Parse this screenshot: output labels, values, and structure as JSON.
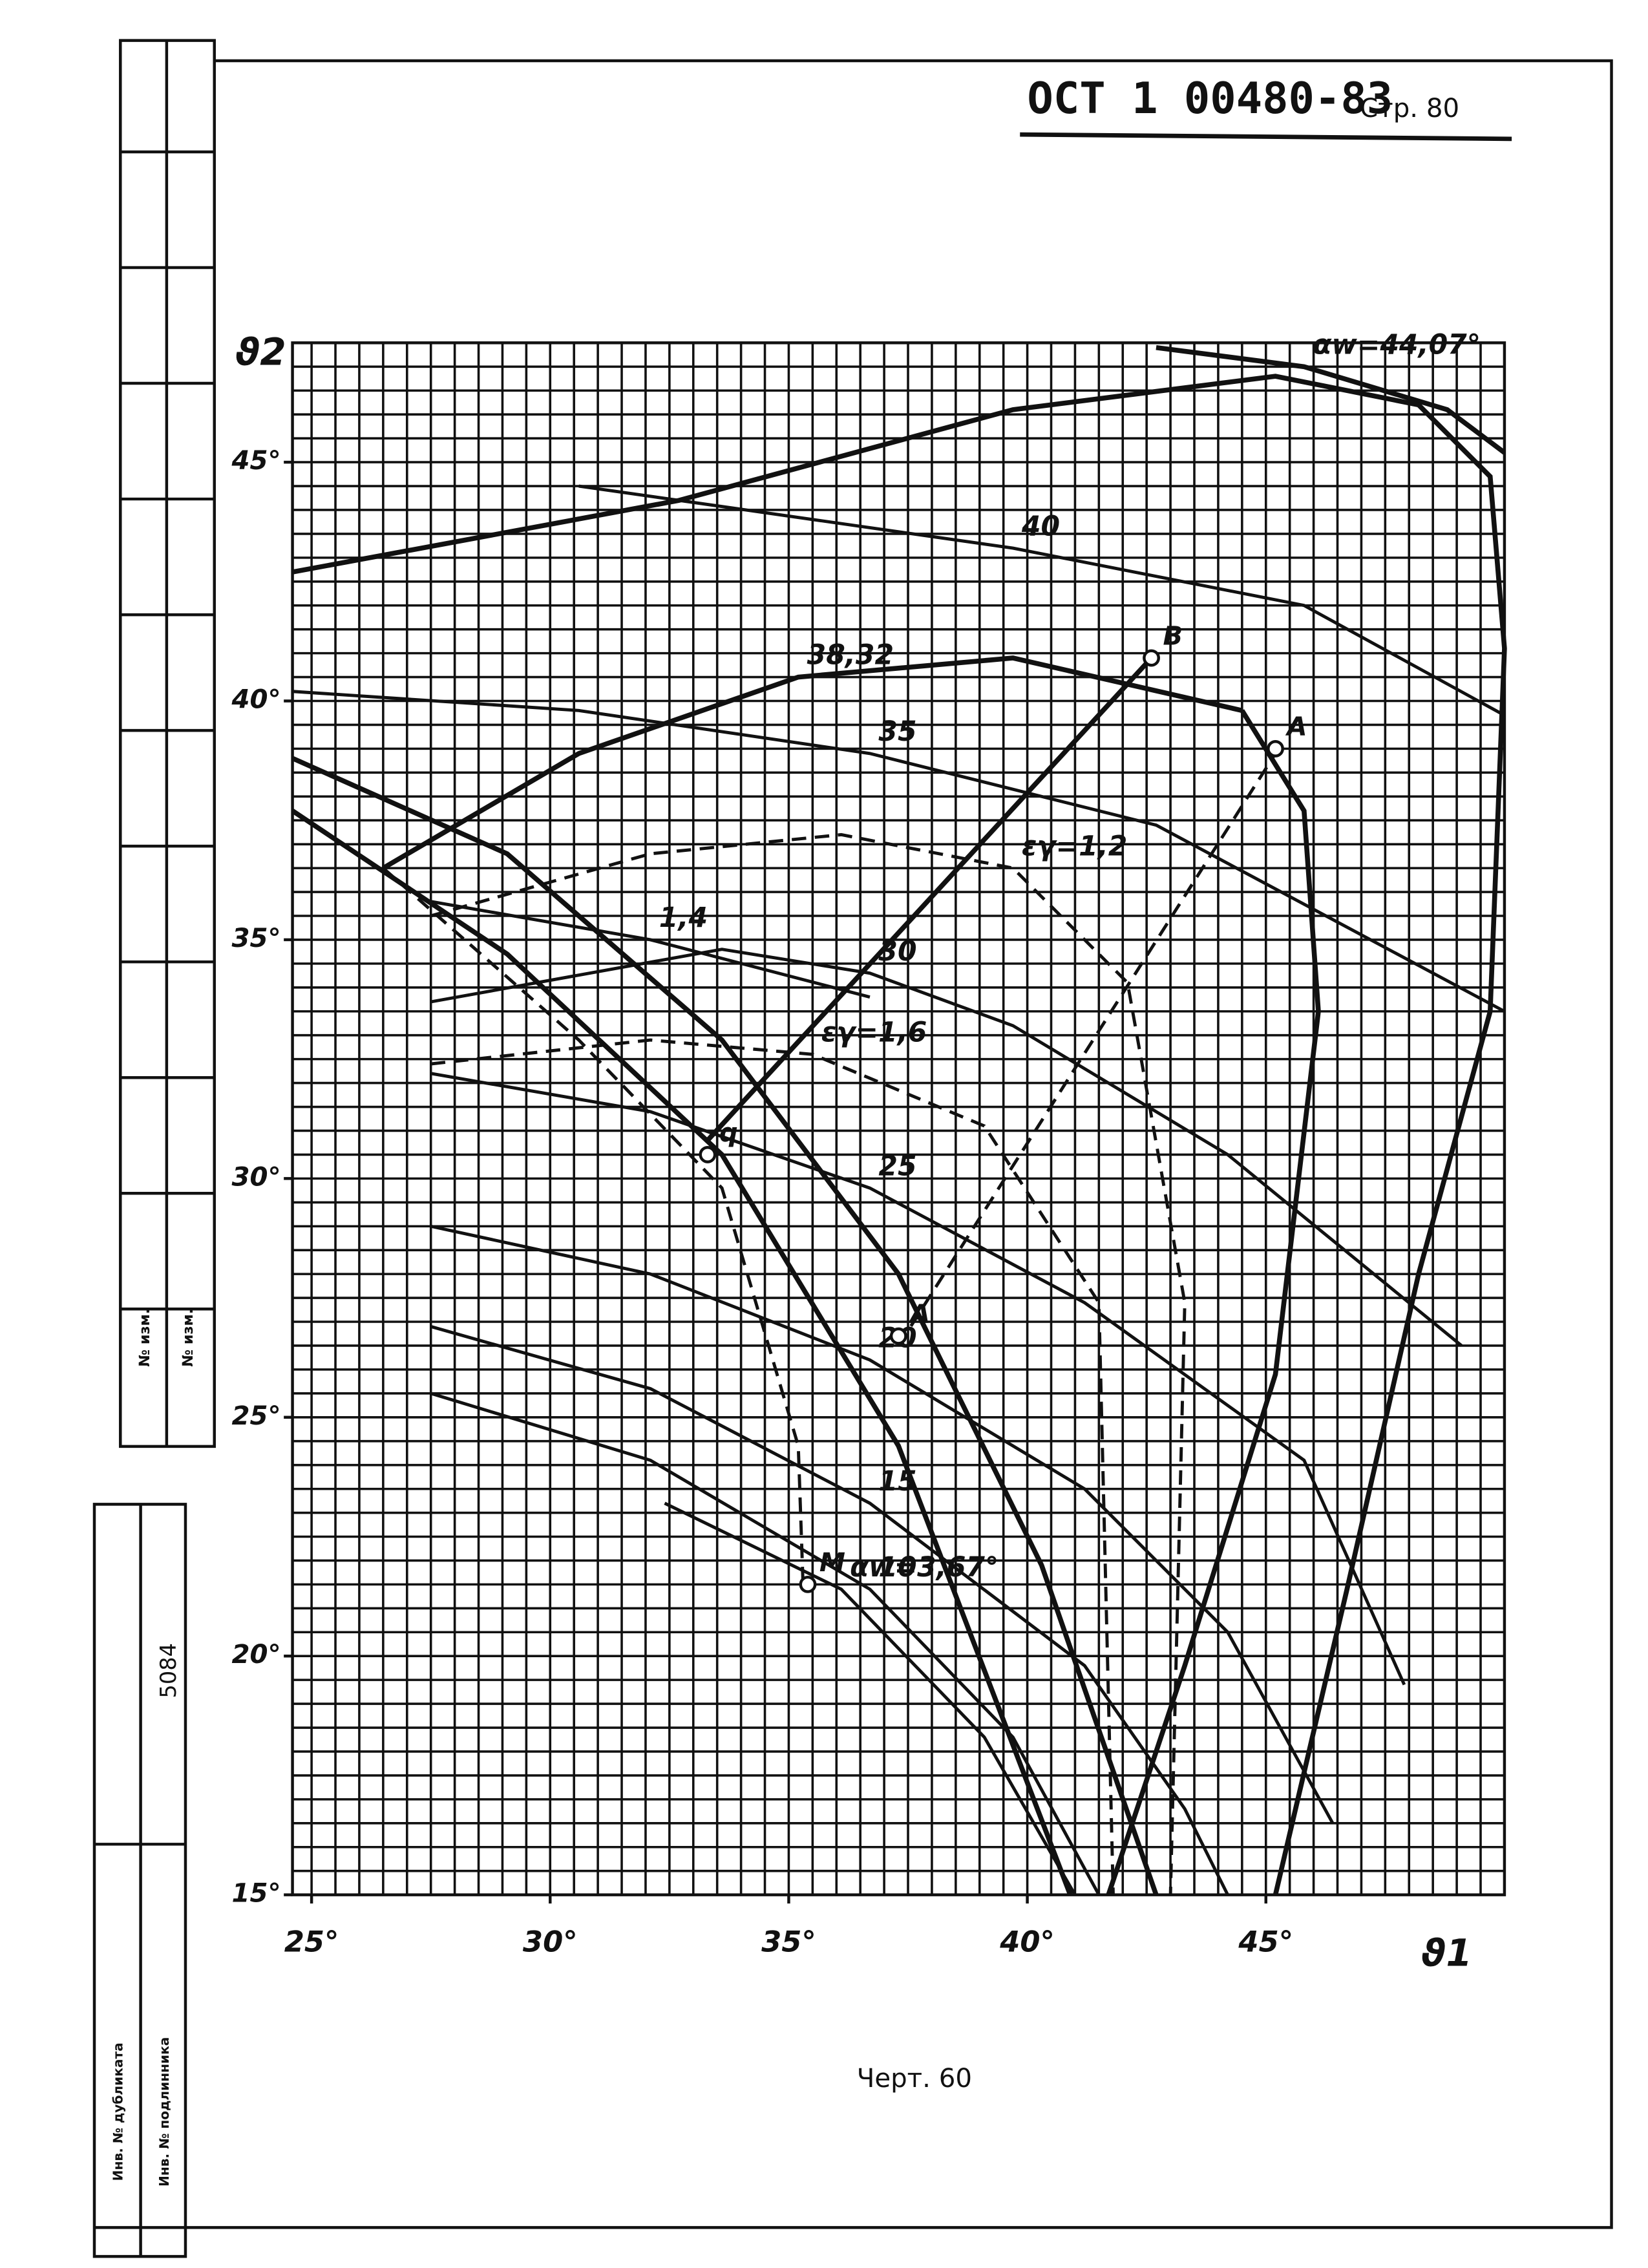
{
  "header": {
    "standard": "ОСТ 1 00480-83",
    "page": "Стр. 80"
  },
  "caption": "Черт. 60",
  "stamp": {
    "change_1": "№ изм.",
    "change_2": "№ изм.",
    "number": "5084",
    "duplicate": "Инв. № дубликата",
    "original": "Инв. № подлинника"
  },
  "chart_data": {
    "type": "line",
    "x_label": "ϑ1",
    "y_label": "ϑ2",
    "xlim": [
      24.6,
      50
    ],
    "ylim": [
      15,
      47.5
    ],
    "xticks": [
      {
        "value": 25,
        "label": "25°"
      },
      {
        "value": 30,
        "label": "30°"
      },
      {
        "value": 35,
        "label": "35°"
      },
      {
        "value": 40,
        "label": "40°"
      },
      {
        "value": 45,
        "label": "45°"
      }
    ],
    "yticks": [
      {
        "value": 15,
        "label": "15°"
      },
      {
        "value": 20,
        "label": "20°"
      },
      {
        "value": 25,
        "label": "25°"
      },
      {
        "value": 30,
        "label": "30°"
      },
      {
        "value": 35,
        "label": "35°"
      },
      {
        "value": 40,
        "label": "40°"
      },
      {
        "value": 45,
        "label": "45°"
      }
    ],
    "grid": true,
    "color": "#111111",
    "series": [
      {
        "name": "αw=44,07°",
        "style": "heavy",
        "x": [
          42.7,
          45.8,
          48.8,
          50.0
        ],
        "values": [
          47.4,
          47.0,
          46.1,
          45.2
        ]
      },
      {
        "name": "40",
        "style": "solid",
        "x": [
          30.6,
          39.7,
          45.8,
          50.0
        ],
        "values": [
          44.5,
          43.2,
          42.0,
          39.7
        ]
      },
      {
        "name": "38,32",
        "style": "heavy",
        "x": [
          26.5,
          30.6,
          35.2,
          39.7,
          44.5
        ],
        "values": [
          36.5,
          38.9,
          40.5,
          40.9,
          39.8
        ]
      },
      {
        "name": "35",
        "style": "solid",
        "x": [
          24.6,
          30.6,
          36.7,
          42.7,
          50.0
        ],
        "values": [
          40.2,
          39.8,
          38.9,
          37.4,
          33.5
        ]
      },
      {
        "name": "εγ=1,2",
        "style": "dashed",
        "x": [
          27.5,
          32.1,
          36.1,
          39.7,
          42.1,
          43.3,
          43.0
        ],
        "values": [
          35.5,
          36.8,
          37.2,
          36.5,
          34.1,
          27.4,
          15
        ]
      },
      {
        "name": "1,4",
        "style": "solid",
        "x": [
          27.5,
          32.1,
          36.7
        ],
        "values": [
          35.8,
          35.0,
          33.8
        ]
      },
      {
        "name": "30",
        "style": "solid",
        "x": [
          27.5,
          33.6,
          36.7,
          39.7,
          44.2,
          49.1
        ],
        "values": [
          33.7,
          34.8,
          34.3,
          33.2,
          30.5,
          26.5
        ]
      },
      {
        "name": "εγ=1,6",
        "style": "dashed",
        "x": [
          27.5,
          32.1,
          35.5,
          39.1,
          41.5,
          41.8
        ],
        "values": [
          32.4,
          32.9,
          32.6,
          31.1,
          27.4,
          15
        ]
      },
      {
        "name": "25",
        "style": "solid",
        "x": [
          27.5,
          32.1,
          36.7,
          41.2,
          45.8,
          47.9
        ],
        "values": [
          32.2,
          31.4,
          29.8,
          27.4,
          24.1,
          19.4
        ]
      },
      {
        "name": "20",
        "style": "solid",
        "x": [
          27.5,
          32.1,
          36.7,
          41.2,
          44.2,
          46.4
        ],
        "values": [
          29.0,
          28.0,
          26.2,
          23.5,
          20.5,
          16.5
        ]
      },
      {
        "name": "15",
        "style": "solid",
        "x": [
          27.5,
          32.1,
          36.7,
          41.2,
          43.3,
          44.2
        ],
        "values": [
          26.9,
          25.6,
          23.2,
          19.8,
          16.8,
          15
        ]
      },
      {
        "name": "10",
        "style": "solid",
        "x": [
          27.5,
          32.1,
          36.7,
          39.7,
          41.5
        ],
        "values": [
          25.5,
          24.1,
          21.4,
          18.3,
          15
        ]
      },
      {
        "name": "αw=3,67°",
        "style": "solid",
        "x": [
          32.4,
          36.1,
          39.1,
          41.0
        ],
        "values": [
          23.2,
          21.4,
          18.3,
          15
        ]
      },
      {
        "style": "heavy",
        "x": [
          24.6,
          32.7,
          39.7,
          45.2,
          48.2,
          49.7,
          50.0,
          49.7,
          48.2,
          46.7,
          45.2
        ],
        "values": [
          42.7,
          44.2,
          46.1,
          46.8,
          46.2,
          44.7,
          41.1,
          33.5,
          28.0,
          21.4,
          15
        ]
      },
      {
        "style": "heavy",
        "x": [
          44.5,
          45.8,
          46.1,
          45.2,
          43.3,
          41.7
        ],
        "values": [
          39.8,
          37.7,
          33.5,
          25.9,
          19.8,
          15
        ]
      },
      {
        "style": "heavy",
        "x": [
          24.6,
          29.1,
          33.6,
          37.3,
          40.3,
          42.7
        ],
        "values": [
          38.8,
          36.8,
          32.9,
          28.0,
          21.9,
          15
        ]
      },
      {
        "style": "heavy",
        "x": [
          24.6,
          29.1,
          33.6,
          37.3,
          40.9
        ],
        "values": [
          37.7,
          34.7,
          30.5,
          24.4,
          15
        ]
      },
      {
        "style": "dashed",
        "x": [
          26.5,
          30.6,
          33.6,
          35.2,
          35.3
        ],
        "values": [
          36.5,
          32.9,
          29.8,
          24.4,
          21.5
        ]
      },
      {
        "style": "heavy",
        "x": [
          33.3,
          42.6
        ],
        "values": [
          30.8,
          40.9
        ]
      },
      {
        "style": "dashed",
        "x": [
          37.3,
          45.2
        ],
        "values": [
          26.5,
          38.9
        ]
      }
    ],
    "points": [
      {
        "label": "В",
        "x": 42.6,
        "y": 40.9
      },
      {
        "label": "A",
        "x": 45.2,
        "y": 39.0
      },
      {
        "label": "q",
        "x": 33.3,
        "y": 30.5
      },
      {
        "label": "A",
        "x": 37.3,
        "y": 26.7
      },
      {
        "label": "M",
        "x": 35.4,
        "y": 21.5
      }
    ]
  }
}
